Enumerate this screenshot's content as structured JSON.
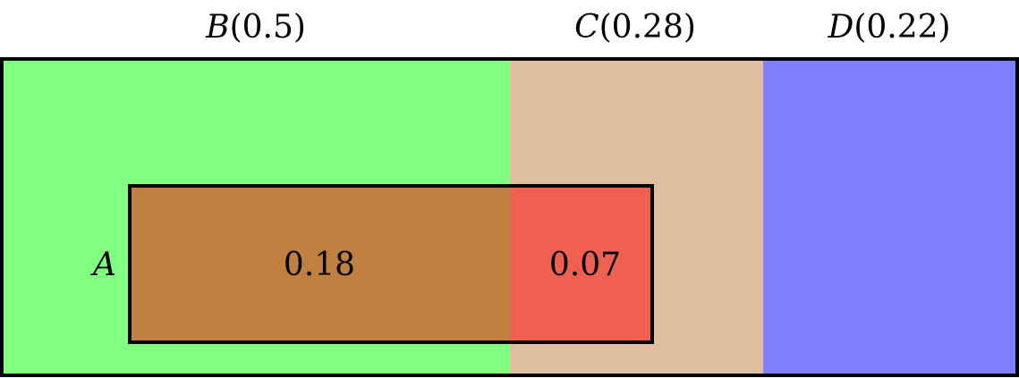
{
  "diagram": {
    "partitions": [
      {
        "id": "B",
        "name": "B",
        "prob": "(0.5)",
        "color": "#80ff80"
      },
      {
        "id": "C",
        "name": "C",
        "prob": "(0.28)",
        "color": "#dfbfa0"
      },
      {
        "id": "D",
        "name": "D",
        "prob": "(0.22)",
        "color": "#8080ff"
      }
    ],
    "event": {
      "name": "A",
      "intersections": [
        {
          "with": "B",
          "value": "0.18",
          "color": "#bf8040"
        },
        {
          "with": "C",
          "value": "0.07",
          "color": "#ef6050"
        }
      ]
    }
  }
}
